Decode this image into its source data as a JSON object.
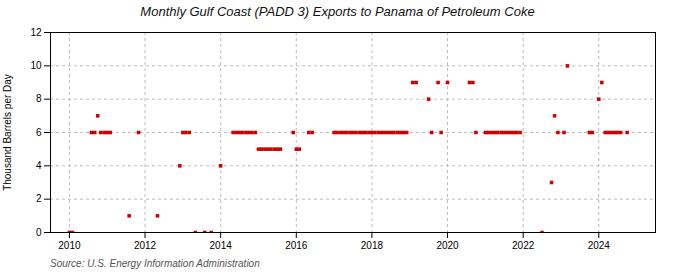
{
  "chart_data": {
    "type": "scatter",
    "title": "Monthly Gulf Coast (PADD 3) Exports to Panama of Petroleum Coke",
    "ylabel": "Thousand Barrels per Day",
    "source": "Source: U.S. Energy Information Administration",
    "color": "#cc0000",
    "marker": "square",
    "grid": true,
    "xlim": [
      2009.5,
      2025.5
    ],
    "xticks": [
      2010,
      2012,
      2014,
      2016,
      2018,
      2020,
      2022,
      2024
    ],
    "ylim": [
      0,
      12
    ],
    "yticks": [
      0,
      2,
      4,
      6,
      8,
      10,
      12
    ],
    "x": [
      2010.0,
      2010.08,
      2010.58,
      2010.67,
      2010.75,
      2010.83,
      2010.92,
      2011.0,
      2011.08,
      2011.58,
      2011.83,
      2012.33,
      2012.92,
      2013.0,
      2013.08,
      2013.17,
      2013.33,
      2013.58,
      2013.75,
      2014.0,
      2014.33,
      2014.42,
      2014.5,
      2014.58,
      2014.67,
      2014.75,
      2014.83,
      2014.92,
      2015.0,
      2015.08,
      2015.17,
      2015.25,
      2015.33,
      2015.42,
      2015.5,
      2015.58,
      2015.92,
      2016.0,
      2016.08,
      2016.33,
      2016.42,
      2017.0,
      2017.08,
      2017.17,
      2017.25,
      2017.33,
      2017.42,
      2017.5,
      2017.58,
      2017.67,
      2017.75,
      2017.83,
      2017.92,
      2018.0,
      2018.08,
      2018.17,
      2018.25,
      2018.33,
      2018.42,
      2018.5,
      2018.58,
      2018.67,
      2018.75,
      2018.83,
      2018.92,
      2019.08,
      2019.17,
      2019.5,
      2019.58,
      2019.75,
      2019.83,
      2020.0,
      2020.58,
      2020.67,
      2020.75,
      2021.0,
      2021.08,
      2021.17,
      2021.25,
      2021.33,
      2021.42,
      2021.5,
      2021.58,
      2021.67,
      2021.75,
      2021.83,
      2021.92,
      2022.5,
      2022.75,
      2022.83,
      2022.92,
      2023.08,
      2023.17,
      2023.75,
      2023.83,
      2024.0,
      2024.08,
      2024.17,
      2024.25,
      2024.33,
      2024.42,
      2024.5,
      2024.58,
      2024.75
    ],
    "values": [
      0,
      0,
      6,
      6,
      7,
      6,
      6,
      6,
      6,
      1,
      6,
      1,
      4,
      6,
      6,
      6,
      0,
      0,
      0,
      4,
      6,
      6,
      6,
      6,
      6,
      6,
      6,
      6,
      5,
      5,
      5,
      5,
      5,
      5,
      5,
      5,
      6,
      5,
      5,
      6,
      6,
      6,
      6,
      6,
      6,
      6,
      6,
      6,
      6,
      6,
      6,
      6,
      6,
      6,
      6,
      6,
      6,
      6,
      6,
      6,
      6,
      6,
      6,
      6,
      6,
      9,
      9,
      8,
      6,
      9,
      6,
      9,
      9,
      9,
      6,
      6,
      6,
      6,
      6,
      6,
      6,
      6,
      6,
      6,
      6,
      6,
      6,
      0,
      3,
      7,
      6,
      6,
      10,
      6,
      6,
      8,
      9,
      6,
      6,
      6,
      6,
      6,
      6,
      6
    ]
  }
}
